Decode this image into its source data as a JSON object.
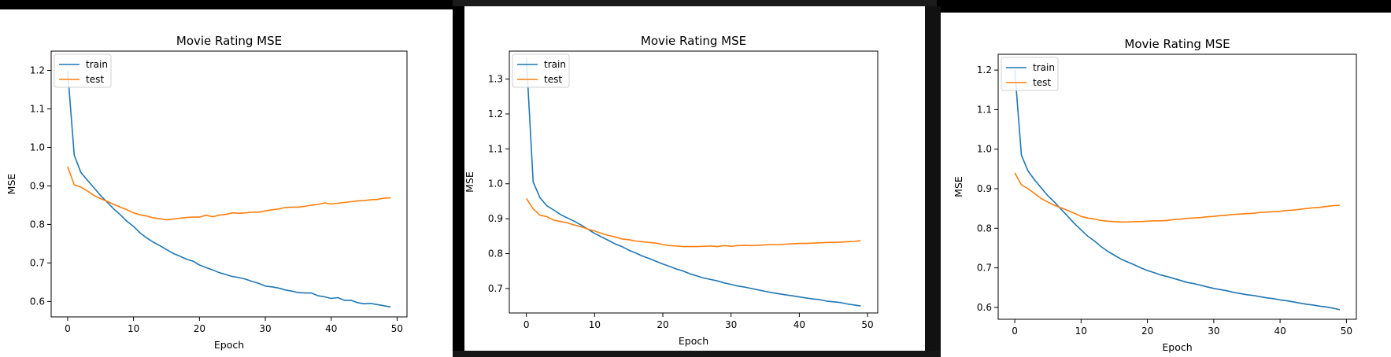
{
  "colors": {
    "train": "#1f77b4",
    "test": "#ff7f0e"
  },
  "chart_data": [
    {
      "type": "line",
      "title": "Movie Rating MSE",
      "xlabel": "Epoch",
      "ylabel": "MSE",
      "xlim": [
        -2.5,
        51.5
      ],
      "ylim": [
        0.56,
        1.25
      ],
      "xticks": [
        0,
        10,
        20,
        30,
        40,
        50
      ],
      "yticks": [
        0.6,
        0.7,
        0.8,
        0.9,
        1.0,
        1.1,
        1.2
      ],
      "legend": "upper-left",
      "x": [
        0,
        1,
        2,
        3,
        4,
        5,
        6,
        7,
        8,
        9,
        10,
        11,
        12,
        13,
        14,
        15,
        16,
        17,
        18,
        19,
        20,
        21,
        22,
        23,
        24,
        25,
        26,
        27,
        28,
        29,
        30,
        31,
        32,
        33,
        34,
        35,
        36,
        37,
        38,
        39,
        40,
        41,
        42,
        43,
        44,
        45,
        46,
        47,
        48,
        49
      ],
      "series": [
        {
          "name": "train",
          "values": [
            1.2,
            0.98,
            0.935,
            0.915,
            0.895,
            0.875,
            0.858,
            0.84,
            0.825,
            0.808,
            0.795,
            0.778,
            0.765,
            0.754,
            0.745,
            0.735,
            0.725,
            0.718,
            0.71,
            0.705,
            0.695,
            0.688,
            0.682,
            0.675,
            0.67,
            0.665,
            0.662,
            0.658,
            0.652,
            0.647,
            0.64,
            0.638,
            0.635,
            0.63,
            0.627,
            0.623,
            0.622,
            0.622,
            0.615,
            0.612,
            0.608,
            0.61,
            0.603,
            0.603,
            0.597,
            0.594,
            0.595,
            0.592,
            0.589,
            0.586
          ]
        },
        {
          "name": "test",
          "values": [
            0.95,
            0.903,
            0.897,
            0.887,
            0.875,
            0.867,
            0.86,
            0.852,
            0.845,
            0.838,
            0.83,
            0.825,
            0.822,
            0.817,
            0.815,
            0.812,
            0.814,
            0.816,
            0.818,
            0.819,
            0.819,
            0.824,
            0.82,
            0.824,
            0.826,
            0.83,
            0.829,
            0.83,
            0.832,
            0.832,
            0.835,
            0.838,
            0.84,
            0.844,
            0.845,
            0.845,
            0.847,
            0.85,
            0.852,
            0.856,
            0.853,
            0.855,
            0.857,
            0.859,
            0.861,
            0.862,
            0.864,
            0.865,
            0.868,
            0.869
          ]
        }
      ]
    },
    {
      "type": "line",
      "title": "Movie Rating MSE",
      "xlabel": "Epoch",
      "ylabel": "MSE",
      "xlim": [
        -2.5,
        51.5
      ],
      "ylim": [
        0.63,
        1.38
      ],
      "xticks": [
        0,
        10,
        20,
        30,
        40,
        50
      ],
      "yticks": [
        0.7,
        0.8,
        0.9,
        1.0,
        1.1,
        1.2,
        1.3
      ],
      "legend": "upper-left",
      "x": [
        0,
        1,
        2,
        3,
        4,
        5,
        6,
        7,
        8,
        9,
        10,
        11,
        12,
        13,
        14,
        15,
        16,
        17,
        18,
        19,
        20,
        21,
        22,
        23,
        24,
        25,
        26,
        27,
        28,
        29,
        30,
        31,
        32,
        33,
        34,
        35,
        36,
        37,
        38,
        39,
        40,
        41,
        42,
        43,
        44,
        45,
        46,
        47,
        48,
        49
      ],
      "series": [
        {
          "name": "train",
          "values": [
            1.36,
            1.005,
            0.96,
            0.937,
            0.925,
            0.912,
            0.902,
            0.893,
            0.882,
            0.87,
            0.858,
            0.848,
            0.838,
            0.828,
            0.82,
            0.81,
            0.802,
            0.793,
            0.786,
            0.778,
            0.77,
            0.763,
            0.756,
            0.75,
            0.742,
            0.736,
            0.73,
            0.726,
            0.722,
            0.716,
            0.712,
            0.707,
            0.704,
            0.7,
            0.696,
            0.692,
            0.688,
            0.685,
            0.682,
            0.679,
            0.676,
            0.673,
            0.67,
            0.668,
            0.664,
            0.662,
            0.66,
            0.656,
            0.653,
            0.65
          ]
        },
        {
          "name": "test",
          "values": [
            0.958,
            0.928,
            0.91,
            0.906,
            0.896,
            0.892,
            0.888,
            0.882,
            0.877,
            0.87,
            0.865,
            0.858,
            0.852,
            0.848,
            0.842,
            0.84,
            0.836,
            0.834,
            0.832,
            0.83,
            0.826,
            0.823,
            0.822,
            0.82,
            0.82,
            0.82,
            0.821,
            0.822,
            0.82,
            0.823,
            0.821,
            0.823,
            0.824,
            0.823,
            0.824,
            0.825,
            0.826,
            0.826,
            0.827,
            0.828,
            0.829,
            0.829,
            0.83,
            0.831,
            0.832,
            0.832,
            0.833,
            0.834,
            0.835,
            0.837
          ]
        }
      ]
    },
    {
      "type": "line",
      "title": "Movie Rating MSE",
      "xlabel": "Epoch",
      "ylabel": "MSE",
      "xlim": [
        -2.5,
        51.5
      ],
      "ylim": [
        0.57,
        1.24
      ],
      "xticks": [
        0,
        10,
        20,
        30,
        40,
        50
      ],
      "yticks": [
        0.6,
        0.7,
        0.8,
        0.9,
        1.0,
        1.1,
        1.2
      ],
      "legend": "upper-left",
      "x": [
        0,
        1,
        2,
        3,
        4,
        5,
        6,
        7,
        8,
        9,
        10,
        11,
        12,
        13,
        14,
        15,
        16,
        17,
        18,
        19,
        20,
        21,
        22,
        23,
        24,
        25,
        26,
        27,
        28,
        29,
        30,
        31,
        32,
        33,
        34,
        35,
        36,
        37,
        38,
        39,
        40,
        41,
        42,
        43,
        44,
        45,
        46,
        47,
        48,
        49
      ],
      "series": [
        {
          "name": "train",
          "values": [
            1.2,
            0.985,
            0.945,
            0.922,
            0.902,
            0.882,
            0.866,
            0.848,
            0.83,
            0.812,
            0.796,
            0.78,
            0.768,
            0.754,
            0.742,
            0.732,
            0.722,
            0.715,
            0.708,
            0.7,
            0.693,
            0.688,
            0.682,
            0.678,
            0.673,
            0.668,
            0.663,
            0.66,
            0.656,
            0.652,
            0.648,
            0.645,
            0.642,
            0.638,
            0.635,
            0.632,
            0.63,
            0.627,
            0.624,
            0.622,
            0.619,
            0.617,
            0.614,
            0.611,
            0.608,
            0.606,
            0.603,
            0.601,
            0.598,
            0.594
          ]
        },
        {
          "name": "test",
          "values": [
            0.94,
            0.91,
            0.9,
            0.888,
            0.875,
            0.866,
            0.858,
            0.852,
            0.845,
            0.838,
            0.83,
            0.826,
            0.823,
            0.82,
            0.818,
            0.817,
            0.816,
            0.816,
            0.817,
            0.817,
            0.818,
            0.819,
            0.819,
            0.82,
            0.822,
            0.823,
            0.825,
            0.826,
            0.827,
            0.829,
            0.83,
            0.832,
            0.833,
            0.835,
            0.836,
            0.837,
            0.838,
            0.84,
            0.841,
            0.842,
            0.843,
            0.845,
            0.846,
            0.848,
            0.85,
            0.852,
            0.853,
            0.855,
            0.857,
            0.858
          ]
        }
      ]
    }
  ]
}
